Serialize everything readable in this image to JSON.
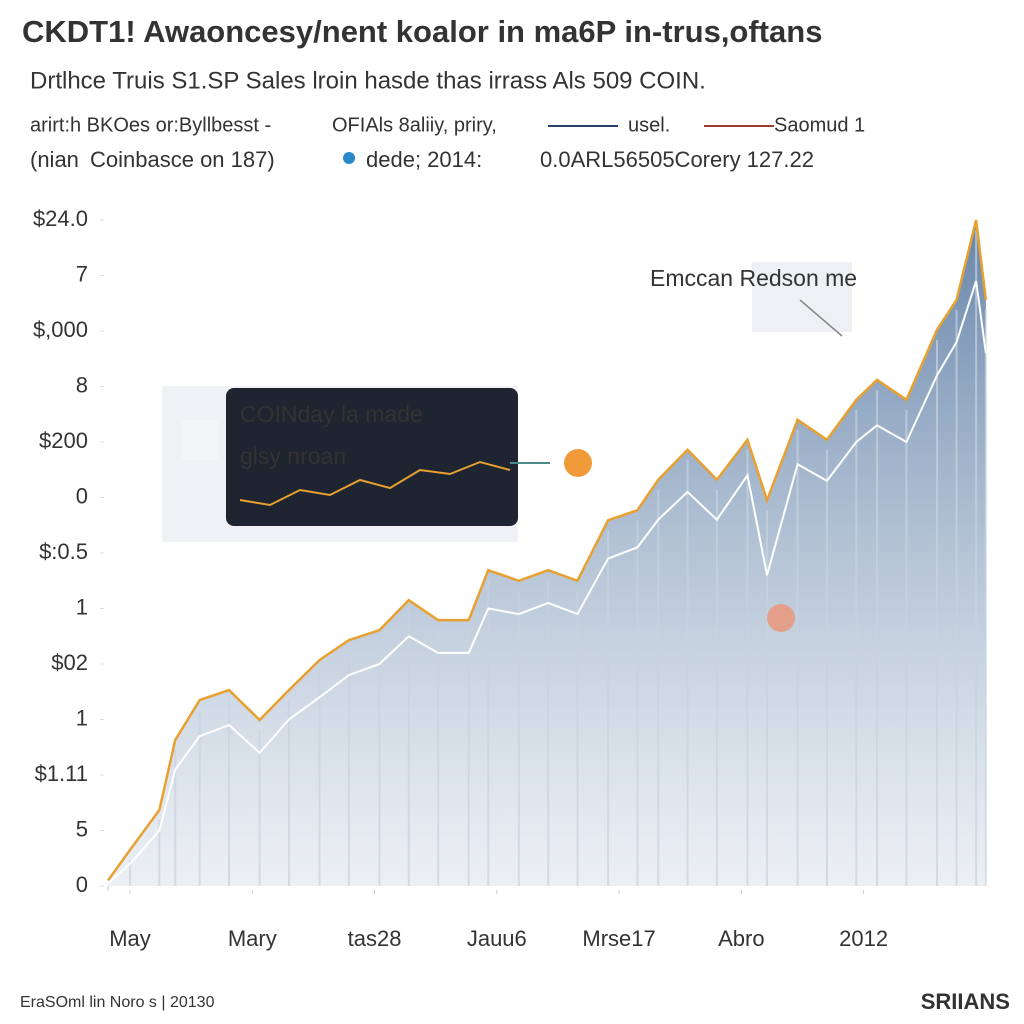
{
  "chart_data": {
    "type": "area",
    "title": "CKDT1! Awaoncesy/nent koalor in ma6P in-trus,oftans",
    "subtitle": "Drtlhce Truis S1.SP Sales lroin hasde thas irrass Als 509 COIN.",
    "notes": [
      "arirt:h BKOes or:Byllbesst -",
      "OFIAls 8aliiy, priry,",
      "(nian",
      "Coinbasce on 187)",
      "dede; 2014:",
      "0.0ARL56505Corery 127.22"
    ],
    "annotations": [
      "Emccan Redson me",
      "COINday la made",
      "glsy nroan"
    ],
    "footer": "EraSOml lin Noro s | 20130",
    "brand": "SRIIANS",
    "x": [
      -0.18,
      0,
      0.24,
      0.37,
      0.57,
      0.81,
      1.06,
      1.3,
      1.55,
      1.79,
      2.04,
      2.28,
      2.52,
      2.77,
      2.93,
      3.18,
      3.42,
      3.66,
      3.91,
      4.15,
      4.32,
      4.56,
      4.8,
      5.05,
      5.21,
      5.46,
      5.7,
      5.94,
      6.11,
      6.35,
      6.6,
      6.76,
      6.92,
      7.0
    ],
    "series": [
      {
        "name": "usel.",
        "color": "#2c3f66",
        "values": [
          0.1,
          0.65,
          1.37,
          2.63,
          3.35,
          3.53,
          2.99,
          3.53,
          4.07,
          4.43,
          4.61,
          5.15,
          4.79,
          4.79,
          5.69,
          5.5,
          5.69,
          5.5,
          6.59,
          6.77,
          7.32,
          7.86,
          7.32,
          8.04,
          6.95,
          8.4,
          8.04,
          8.76,
          9.12,
          8.76,
          10.02,
          10.56,
          12,
          10.56
        ]
      },
      {
        "name": "Saomud 1",
        "color": "#9c3a30",
        "values": [
          0.05,
          0.4,
          1.0,
          2.1,
          2.7,
          2.9,
          2.4,
          3.0,
          3.4,
          3.8,
          4.0,
          4.5,
          4.2,
          4.2,
          5.0,
          4.9,
          5.1,
          4.9,
          5.9,
          6.1,
          6.6,
          7.1,
          6.6,
          7.4,
          5.6,
          7.6,
          7.3,
          8.0,
          8.3,
          8.0,
          9.2,
          9.8,
          10.9,
          9.6
        ]
      }
    ],
    "xlim": [
      -0.18,
      7.05
    ],
    "xticks": [
      {
        "value": 0,
        "label": "May"
      },
      {
        "value": 1,
        "label": "Mary"
      },
      {
        "value": 2,
        "label": "tas28"
      },
      {
        "value": 3,
        "label": "Jauu6"
      },
      {
        "value": 4,
        "label": "Mrse17"
      },
      {
        "value": 5,
        "label": "Abro"
      },
      {
        "value": 6,
        "label": "2012"
      }
    ],
    "ylim": [
      0,
      12
    ],
    "yticks": [
      {
        "value": 0,
        "label": "0"
      },
      {
        "value": 1,
        "label": "5"
      },
      {
        "value": 2,
        "label": "$1.11"
      },
      {
        "value": 3,
        "label": "1"
      },
      {
        "value": 4,
        "label": "$02"
      },
      {
        "value": 5,
        "label": "1"
      },
      {
        "value": 6,
        "label": "$:0.5"
      },
      {
        "value": 7,
        "label": "0"
      },
      {
        "value": 8,
        "label": "$200"
      },
      {
        "value": 9,
        "label": "8"
      },
      {
        "value": 10,
        "label": "$,000"
      },
      {
        "value": 11,
        "label": "7"
      },
      {
        "value": 12,
        "label": "$24.0"
      }
    ],
    "grid": false
  }
}
